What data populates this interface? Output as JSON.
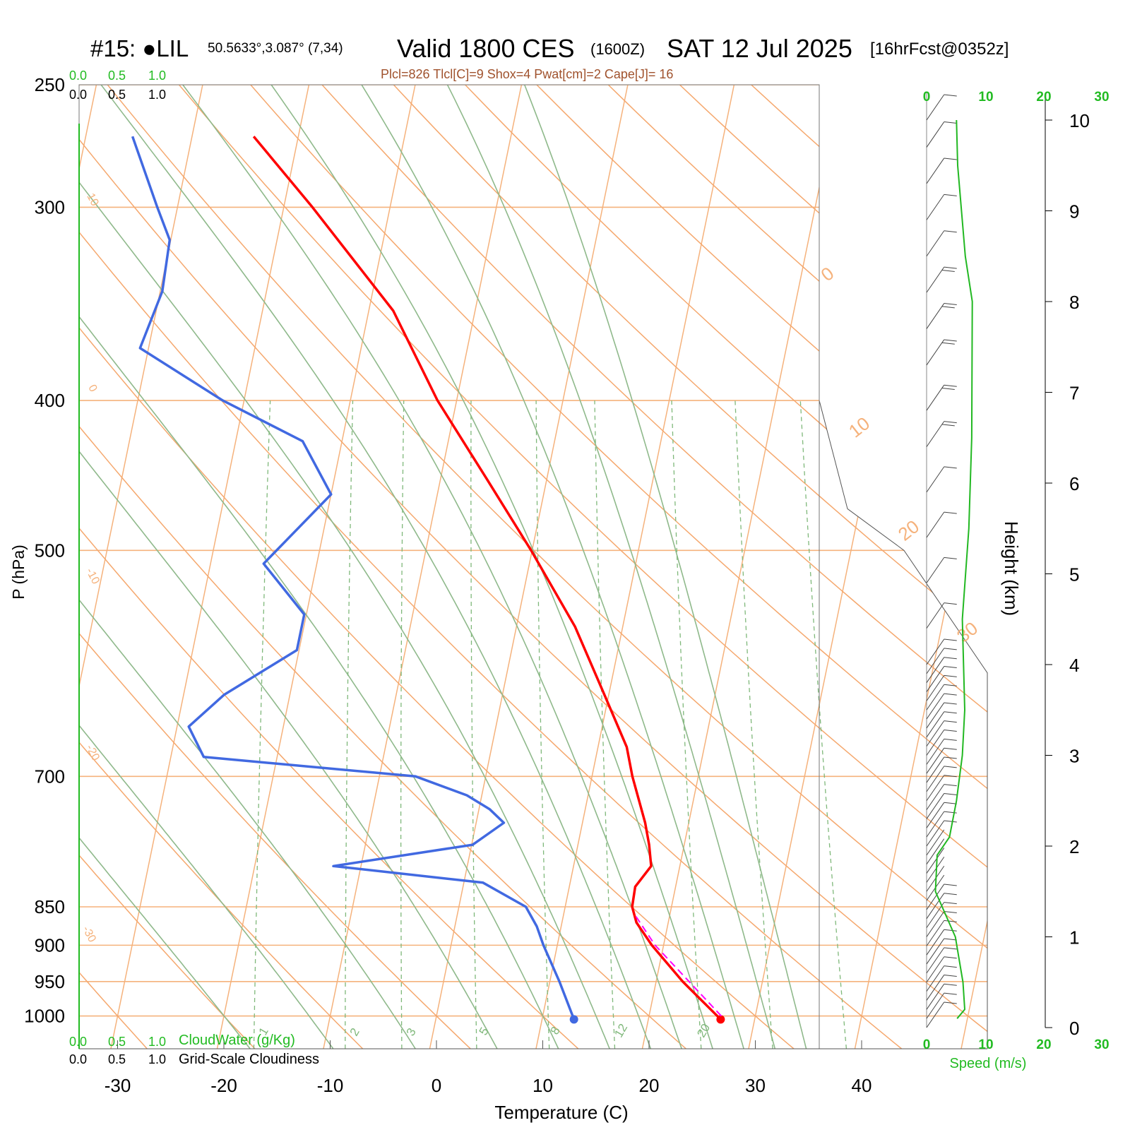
{
  "header": {
    "station": "#15: ●LIL",
    "coords": "50.5633°,3.087° (7,34)",
    "valid": "Valid 1800 CES",
    "zulu": "(1600Z)",
    "date": "SAT 12 Jul 2025",
    "forecast": "[16hrFcst@0352z]",
    "indices": "Plcl=826 Tlcl[C]=9 Shox=4 Pwat[cm]=2 Cape[J]= 16"
  },
  "colors": {
    "isotherm": "#f5b27c",
    "dry_adiabat": "#f5a86e",
    "moist_adiabat": "#8fb98b",
    "mixing_ratio": "#7fb87a",
    "temperature": "#ff0000",
    "dewpoint": "#4169e1",
    "parcel": "#ff00ff",
    "wind_speed": "#22b822",
    "green_text": "#22bb22",
    "index_text": "#a0522d"
  },
  "chart_data": {
    "type": "line",
    "diagram": "skew-T log-P",
    "xlabel": "Temperature (C)",
    "ylabel": "P (hPa)",
    "y2label": "Height (km)",
    "x_ticks": [
      -30,
      -20,
      -10,
      0,
      10,
      20,
      30,
      40
    ],
    "y_ticks": [
      250,
      300,
      400,
      500,
      700,
      850,
      900,
      950,
      1000
    ],
    "height_ticks": [
      0,
      1,
      2,
      3,
      4,
      5,
      6,
      7,
      8,
      9,
      10
    ],
    "xlim": [
      -34,
      36
    ],
    "ylim": [
      1050,
      250
    ],
    "isotherm_labels": [
      "10",
      "0",
      "-10",
      "-20",
      "-30"
    ],
    "right_temp_labels": [
      "0",
      "10",
      "20",
      "30"
    ],
    "mixing_ratio_labels": [
      "1",
      "2",
      "3",
      "5",
      "8",
      "12",
      "20"
    ],
    "cloud_top_scale": {
      "green": [
        "0.0",
        "0.5",
        "1.0"
      ],
      "black": [
        "0.0",
        "0.5",
        "1.0"
      ]
    },
    "cloud_bottom_scale": {
      "green": [
        "0.0",
        "0.5",
        "1.0"
      ],
      "green_label": "CloudWater (g/Kg)",
      "black": [
        "0.0",
        "0.5",
        "1.0"
      ],
      "black_label": "Grid-Scale Cloudiness"
    },
    "wind_scale_top": [
      "0",
      "10",
      "20",
      "30"
    ],
    "wind_scale_bottom": [
      "0",
      "10",
      "20",
      "30"
    ],
    "wind_label": "Speed (m/s)",
    "series": [
      {
        "key": "temperature",
        "points": [
          {
            "p": 1005,
            "t": 26.8
          },
          {
            "p": 950,
            "t": 22.5
          },
          {
            "p": 900,
            "t": 18.9
          },
          {
            "p": 870,
            "t": 17.0
          },
          {
            "p": 850,
            "t": 16.3
          },
          {
            "p": 825,
            "t": 16.2
          },
          {
            "p": 800,
            "t": 17.3
          },
          {
            "p": 775,
            "t": 16.7
          },
          {
            "p": 750,
            "t": 15.9
          },
          {
            "p": 700,
            "t": 13.8
          },
          {
            "p": 670,
            "t": 12.7
          },
          {
            "p": 620,
            "t": 9.6
          },
          {
            "p": 560,
            "t": 5.5
          },
          {
            "p": 500,
            "t": -0.1
          },
          {
            "p": 450,
            "t": -5.6
          },
          {
            "p": 400,
            "t": -11.8
          },
          {
            "p": 350,
            "t": -17.7
          },
          {
            "p": 300,
            "t": -27.3
          },
          {
            "p": 270,
            "t": -34.2
          }
        ]
      },
      {
        "key": "dewpoint",
        "points": [
          {
            "p": 1005,
            "t": 13.0
          },
          {
            "p": 950,
            "t": 10.9
          },
          {
            "p": 900,
            "t": 8.7
          },
          {
            "p": 875,
            "t": 7.7
          },
          {
            "p": 850,
            "t": 6.3
          },
          {
            "p": 820,
            "t": 1.8
          },
          {
            "p": 800,
            "t": -12.6
          },
          {
            "p": 775,
            "t": 0.1
          },
          {
            "p": 750,
            "t": 2.6
          },
          {
            "p": 735,
            "t": 1.0
          },
          {
            "p": 720,
            "t": -1.4
          },
          {
            "p": 700,
            "t": -6.6
          },
          {
            "p": 680,
            "t": -26.9
          },
          {
            "p": 650,
            "t": -28.9
          },
          {
            "p": 620,
            "t": -26.2
          },
          {
            "p": 580,
            "t": -20.2
          },
          {
            "p": 550,
            "t": -20.2
          },
          {
            "p": 510,
            "t": -25.0
          },
          {
            "p": 460,
            "t": -20.0
          },
          {
            "p": 425,
            "t": -23.7
          },
          {
            "p": 400,
            "t": -32.0
          },
          {
            "p": 370,
            "t": -40.8
          },
          {
            "p": 340,
            "t": -39.8
          },
          {
            "p": 315,
            "t": -40.1
          },
          {
            "p": 300,
            "t": -41.9
          },
          {
            "p": 270,
            "t": -45.6
          }
        ]
      },
      {
        "key": "parcel",
        "points": [
          {
            "p": 1000,
            "t": 26.8
          },
          {
            "p": 950,
            "t": 23.1
          },
          {
            "p": 900,
            "t": 19.2
          },
          {
            "p": 860,
            "t": 16.7
          }
        ]
      }
    ],
    "wind_speed_profile": [
      {
        "z": 0.1,
        "v": 5.2
      },
      {
        "z": 0.2,
        "v": 6.5
      },
      {
        "z": 0.5,
        "v": 6.2
      },
      {
        "z": 1.0,
        "v": 4.9
      },
      {
        "z": 1.5,
        "v": 1.5
      },
      {
        "z": 1.9,
        "v": 1.8
      },
      {
        "z": 2.1,
        "v": 3.9
      },
      {
        "z": 2.5,
        "v": 5.1
      },
      {
        "z": 3.0,
        "v": 6.1
      },
      {
        "z": 3.5,
        "v": 6.5
      },
      {
        "z": 4.5,
        "v": 6.1
      },
      {
        "z": 5.5,
        "v": 7.2
      },
      {
        "z": 6.5,
        "v": 7.7
      },
      {
        "z": 8.0,
        "v": 7.8
      },
      {
        "z": 8.5,
        "v": 6.6
      },
      {
        "z": 9.5,
        "v": 5.3
      },
      {
        "z": 10.0,
        "v": 5.1
      }
    ],
    "wind_barbs": [
      {
        "z": 0.0,
        "dir": 300,
        "spd": 5
      },
      {
        "z": 0.1,
        "dir": 300,
        "spd": 6
      },
      {
        "z": 0.2,
        "dir": 300,
        "spd": 6
      },
      {
        "z": 0.3,
        "dir": 300,
        "spd": 6
      },
      {
        "z": 0.4,
        "dir": 300,
        "spd": 6
      },
      {
        "z": 0.5,
        "dir": 300,
        "spd": 6
      },
      {
        "z": 0.6,
        "dir": 300,
        "spd": 6
      },
      {
        "z": 0.7,
        "dir": 300,
        "spd": 6
      },
      {
        "z": 0.8,
        "dir": 300,
        "spd": 6
      },
      {
        "z": 0.9,
        "dir": 300,
        "spd": 5
      },
      {
        "z": 1.0,
        "dir": 300,
        "spd": 5
      },
      {
        "z": 1.1,
        "dir": 300,
        "spd": 4
      },
      {
        "z": 1.2,
        "dir": 290,
        "spd": 3
      },
      {
        "z": 1.3,
        "dir": 290,
        "spd": 3
      },
      {
        "z": 1.4,
        "dir": 280,
        "spd": 2
      },
      {
        "z": 1.5,
        "dir": 270,
        "spd": 2
      },
      {
        "z": 1.6,
        "dir": 270,
        "spd": 2
      },
      {
        "z": 1.7,
        "dir": 280,
        "spd": 2
      },
      {
        "z": 1.8,
        "dir": 290,
        "spd": 2
      },
      {
        "z": 1.9,
        "dir": 300,
        "spd": 2
      },
      {
        "z": 2.0,
        "dir": 320,
        "spd": 3
      },
      {
        "z": 2.1,
        "dir": 320,
        "spd": 4
      },
      {
        "z": 2.2,
        "dir": 320,
        "spd": 4
      },
      {
        "z": 2.3,
        "dir": 320,
        "spd": 5
      },
      {
        "z": 2.4,
        "dir": 320,
        "spd": 5
      },
      {
        "z": 2.5,
        "dir": 320,
        "spd": 5
      },
      {
        "z": 2.6,
        "dir": 320,
        "spd": 5
      },
      {
        "z": 2.7,
        "dir": 320,
        "spd": 5
      },
      {
        "z": 2.8,
        "dir": 320,
        "spd": 6
      },
      {
        "z": 2.9,
        "dir": 320,
        "spd": 6
      },
      {
        "z": 3.0,
        "dir": 320,
        "spd": 6
      },
      {
        "z": 3.1,
        "dir": 320,
        "spd": 6
      },
      {
        "z": 3.2,
        "dir": 320,
        "spd": 6
      },
      {
        "z": 3.3,
        "dir": 320,
        "spd": 6
      },
      {
        "z": 3.4,
        "dir": 320,
        "spd": 6
      },
      {
        "z": 3.5,
        "dir": 320,
        "spd": 6
      },
      {
        "z": 3.6,
        "dir": 320,
        "spd": 6
      },
      {
        "z": 3.7,
        "dir": 320,
        "spd": 6
      },
      {
        "z": 3.8,
        "dir": 320,
        "spd": 6
      },
      {
        "z": 3.9,
        "dir": 320,
        "spd": 6
      },
      {
        "z": 4.0,
        "dir": 320,
        "spd": 6
      },
      {
        "z": 4.4,
        "dir": 320,
        "spd": 6
      },
      {
        "z": 4.9,
        "dir": 320,
        "spd": 6
      },
      {
        "z": 5.4,
        "dir": 330,
        "spd": 7
      },
      {
        "z": 5.9,
        "dir": 330,
        "spd": 7
      },
      {
        "z": 6.4,
        "dir": 330,
        "spd": 8
      },
      {
        "z": 6.8,
        "dir": 330,
        "spd": 8
      },
      {
        "z": 7.3,
        "dir": 330,
        "spd": 8
      },
      {
        "z": 7.7,
        "dir": 330,
        "spd": 8
      },
      {
        "z": 8.1,
        "dir": 330,
        "spd": 8
      },
      {
        "z": 8.5,
        "dir": 330,
        "spd": 7
      },
      {
        "z": 8.9,
        "dir": 330,
        "spd": 6
      },
      {
        "z": 9.3,
        "dir": 330,
        "spd": 5
      },
      {
        "z": 9.7,
        "dir": 330,
        "spd": 5
      },
      {
        "z": 10.0,
        "dir": 330,
        "spd": 5
      }
    ]
  }
}
